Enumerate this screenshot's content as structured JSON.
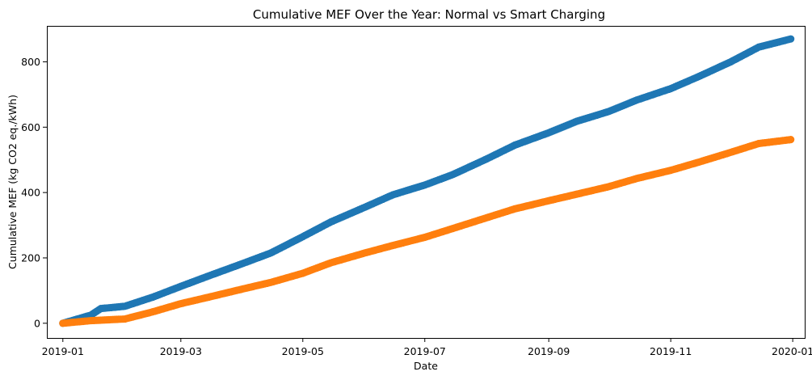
{
  "chart_data": {
    "type": "scatter",
    "title": "Cumulative MEF Over the Year: Normal vs Smart Charging",
    "xlabel": "Date",
    "ylabel": "Cumulative MEF (kg CO2 eq./kWh)",
    "x_ticks": [
      "2019-01",
      "2019-03",
      "2019-05",
      "2019-07",
      "2019-09",
      "2019-11",
      "2020-01"
    ],
    "y_ticks": [
      0,
      200,
      400,
      600,
      800
    ],
    "xlim": [
      "2018-12-24",
      "2020-01-07"
    ],
    "ylim": [
      -45,
      910
    ],
    "grid": false,
    "legend": false,
    "colors": [
      "#1f77b4",
      "#ff7f0e"
    ],
    "series": [
      {
        "color": "#1f77b4",
        "x": [
          "2019-01-01",
          "2019-01-15",
          "2019-01-20",
          "2019-02-01",
          "2019-02-15",
          "2019-03-01",
          "2019-03-15",
          "2019-04-01",
          "2019-04-15",
          "2019-05-01",
          "2019-05-15",
          "2019-06-01",
          "2019-06-15",
          "2019-07-01",
          "2019-07-15",
          "2019-08-01",
          "2019-08-15",
          "2019-09-01",
          "2019-09-15",
          "2019-10-01",
          "2019-10-15",
          "2019-11-01",
          "2019-11-15",
          "2019-12-01",
          "2019-12-15",
          "2019-12-31"
        ],
        "y": [
          0,
          25,
          45,
          52,
          80,
          113,
          145,
          183,
          215,
          265,
          310,
          355,
          393,
          423,
          455,
          503,
          545,
          583,
          618,
          648,
          683,
          718,
          755,
          800,
          845,
          870
        ]
      },
      {
        "color": "#ff7f0e",
        "x": [
          "2019-01-01",
          "2019-01-15",
          "2019-02-01",
          "2019-02-15",
          "2019-03-01",
          "2019-03-15",
          "2019-04-01",
          "2019-04-15",
          "2019-05-01",
          "2019-05-15",
          "2019-06-01",
          "2019-06-15",
          "2019-07-01",
          "2019-07-15",
          "2019-08-01",
          "2019-08-15",
          "2019-09-01",
          "2019-09-15",
          "2019-10-01",
          "2019-10-15",
          "2019-11-01",
          "2019-11-15",
          "2019-12-01",
          "2019-12-15",
          "2019-12-31"
        ],
        "y": [
          0,
          8,
          13,
          35,
          60,
          80,
          105,
          125,
          153,
          185,
          215,
          238,
          263,
          290,
          323,
          350,
          375,
          395,
          418,
          443,
          468,
          493,
          523,
          550,
          562
        ]
      }
    ]
  }
}
